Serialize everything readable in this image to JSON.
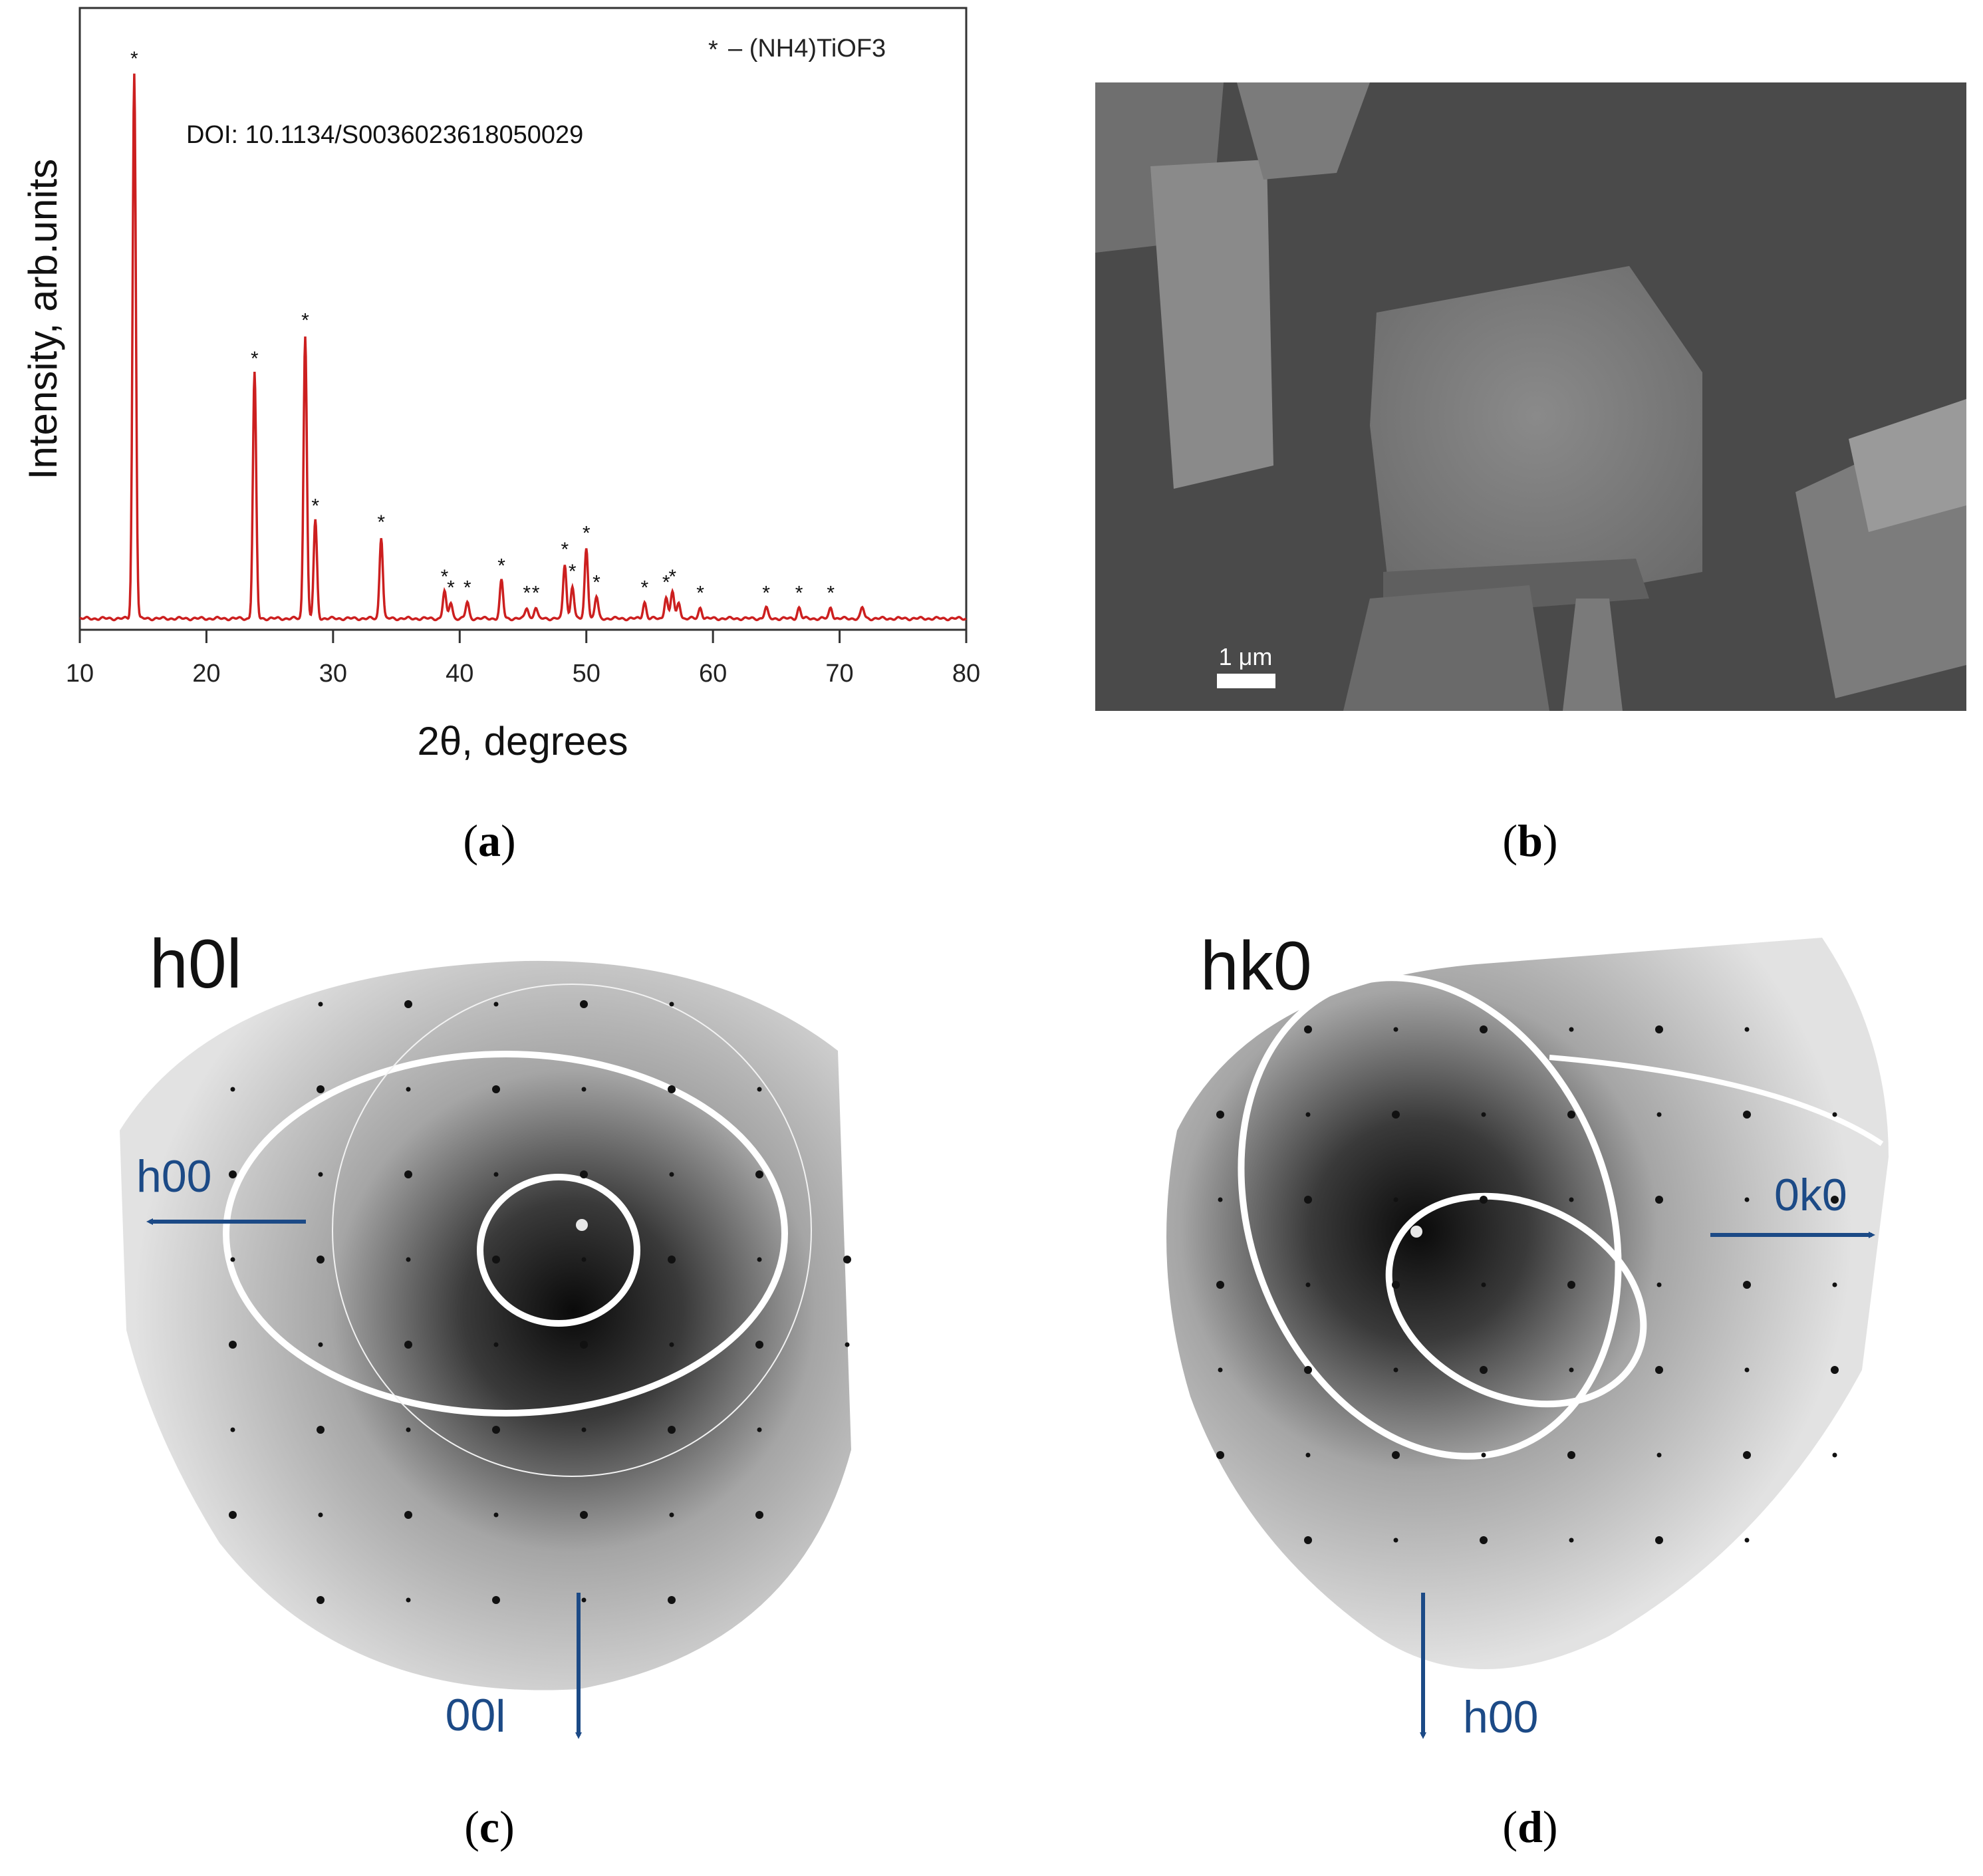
{
  "panels": {
    "a": {
      "caption_open": "(",
      "caption_letter": "a",
      "caption_close": ")"
    },
    "b": {
      "caption_open": "(",
      "caption_letter": "b",
      "caption_close": ")",
      "scale_bar_label": "1 μm"
    },
    "c": {
      "caption_open": "(",
      "caption_letter": "c",
      "caption_close": ")",
      "plane_label": "h0l",
      "arrow_left_label": "h00",
      "arrow_down_label": "00l"
    },
    "d": {
      "caption_open": "(",
      "caption_letter": "d",
      "caption_close": ")",
      "plane_label": "hk0",
      "arrow_right_label": "0k0",
      "arrow_down_label": "h00"
    }
  },
  "colors": {
    "xrd_line": "#cc1f1f",
    "arrow": "#1c4a86",
    "sem_bg": "#4a4a4a"
  },
  "chart_data": {
    "type": "line",
    "xlabel": "2θ, degrees",
    "ylabel": "Intensity, arb.units",
    "xlim": [
      10,
      80
    ],
    "ylim": [
      0,
      100
    ],
    "xticks": [
      10,
      20,
      30,
      40,
      50,
      60,
      70,
      80
    ],
    "legend_marker": "*",
    "legend_text": "– (NH4)TiOF3",
    "annotation": "DOI: 10.1134/S0036023618050029",
    "peak_marker": "*",
    "peaks": [
      {
        "x": 14.3,
        "y": 100
      },
      {
        "x": 23.8,
        "y": 45
      },
      {
        "x": 27.8,
        "y": 52
      },
      {
        "x": 28.6,
        "y": 18
      },
      {
        "x": 33.8,
        "y": 15
      },
      {
        "x": 38.8,
        "y": 5
      },
      {
        "x": 39.3,
        "y": 3
      },
      {
        "x": 40.6,
        "y": 3
      },
      {
        "x": 43.3,
        "y": 7
      },
      {
        "x": 45.3,
        "y": 2
      },
      {
        "x": 46.0,
        "y": 2
      },
      {
        "x": 48.3,
        "y": 10
      },
      {
        "x": 48.9,
        "y": 6
      },
      {
        "x": 50.0,
        "y": 13
      },
      {
        "x": 50.8,
        "y": 4
      },
      {
        "x": 54.6,
        "y": 3
      },
      {
        "x": 56.3,
        "y": 4
      },
      {
        "x": 56.8,
        "y": 5
      },
      {
        "x": 57.3,
        "y": 3
      },
      {
        "x": 59.0,
        "y": 2
      },
      {
        "x": 64.2,
        "y": 2
      },
      {
        "x": 66.8,
        "y": 2
      },
      {
        "x": 69.3,
        "y": 2
      },
      {
        "x": 71.8,
        "y": 2
      }
    ],
    "starred_peaks": [
      14.3,
      23.8,
      27.8,
      28.6,
      33.8,
      38.8,
      39.3,
      40.6,
      43.3,
      45.3,
      46.0,
      48.3,
      48.9,
      50.0,
      50.8,
      54.6,
      56.3,
      56.8,
      59.0,
      64.2,
      66.8,
      69.3
    ]
  }
}
